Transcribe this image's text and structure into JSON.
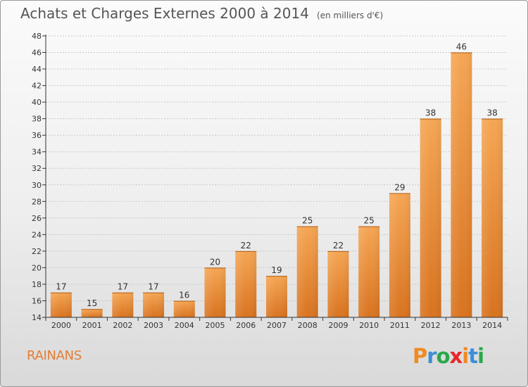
{
  "header": {
    "title": "Achats et Charges Externes 2000 à 2014",
    "subtitle": "(en milliers d'€)"
  },
  "footer": {
    "commune": "RAINANS",
    "logo_text": "Proxiti"
  },
  "colors": {
    "bar": "#f0943c",
    "bar_dark": "#d8731f",
    "axis": "#333333",
    "grid": "#c8c8c8",
    "commune": "#e37d33",
    "logo_letters": [
      "#f08a22",
      "#3d8ed6",
      "#2aa84a",
      "#e8262a",
      "#f08a22",
      "#3d8ed6",
      "#2aa84a"
    ]
  },
  "chart_data": {
    "type": "bar",
    "title": "Achats et Charges Externes 2000 à 2014",
    "subtitle": "(en milliers d'€)",
    "categories": [
      "2000",
      "2001",
      "2002",
      "2003",
      "2004",
      "2005",
      "2006",
      "2007",
      "2008",
      "2009",
      "2010",
      "2011",
      "2012",
      "2013",
      "2014"
    ],
    "values": [
      17,
      15,
      17,
      17,
      16,
      20,
      22,
      19,
      25,
      22,
      25,
      29,
      38,
      46,
      38
    ],
    "ylim": [
      14,
      48
    ],
    "yticks": [
      14,
      16,
      18,
      20,
      22,
      24,
      26,
      28,
      30,
      32,
      34,
      36,
      38,
      40,
      42,
      44,
      46,
      48
    ],
    "grid": true,
    "data_labels": true,
    "xlabel": "",
    "ylabel": ""
  }
}
